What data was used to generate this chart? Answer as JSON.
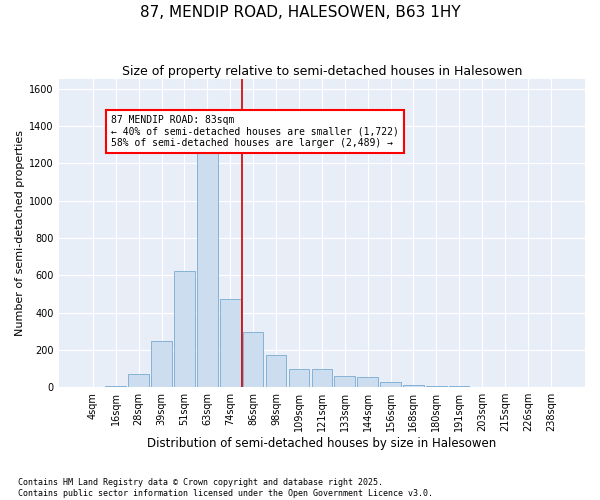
{
  "title": "87, MENDIP ROAD, HALESOWEN, B63 1HY",
  "subtitle": "Size of property relative to semi-detached houses in Halesowen",
  "xlabel": "Distribution of semi-detached houses by size in Halesowen",
  "ylabel": "Number of semi-detached properties",
  "bar_labels": [
    "4sqm",
    "16sqm",
    "28sqm",
    "39sqm",
    "51sqm",
    "63sqm",
    "74sqm",
    "86sqm",
    "98sqm",
    "109sqm",
    "121sqm",
    "133sqm",
    "144sqm",
    "156sqm",
    "168sqm",
    "180sqm",
    "191sqm",
    "203sqm",
    "215sqm",
    "226sqm",
    "238sqm"
  ],
  "bar_values": [
    3,
    5,
    70,
    245,
    620,
    1305,
    470,
    295,
    175,
    100,
    95,
    60,
    55,
    30,
    10,
    5,
    5,
    0,
    0,
    0,
    0
  ],
  "bar_color": "#ccddf0",
  "bar_edgecolor": "#7aaad0",
  "vline_color": "#cc0000",
  "vline_label_title": "87 MENDIP ROAD: 83sqm",
  "vline_label_line1": "← 40% of semi-detached houses are smaller (1,722)",
  "vline_label_line2": "58% of semi-detached houses are larger (2,489) →",
  "ylim": [
    0,
    1650
  ],
  "yticks": [
    0,
    200,
    400,
    600,
    800,
    1000,
    1200,
    1400,
    1600
  ],
  "background_color": "#e8eef8",
  "grid_color": "#ffffff",
  "footer_line1": "Contains HM Land Registry data © Crown copyright and database right 2025.",
  "footer_line2": "Contains public sector information licensed under the Open Government Licence v3.0.",
  "title_fontsize": 11,
  "subtitle_fontsize": 9,
  "ylabel_fontsize": 8,
  "xlabel_fontsize": 8.5,
  "tick_fontsize": 7,
  "footer_fontsize": 6
}
